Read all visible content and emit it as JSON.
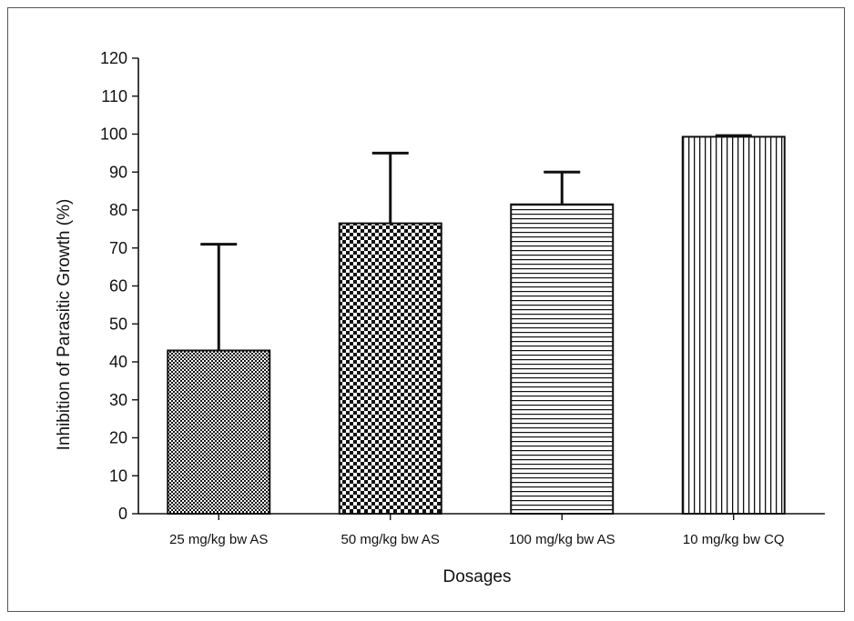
{
  "chart_data": {
    "type": "bar",
    "title": "",
    "xlabel": "Dosages",
    "ylabel": "Inhibition of Parasitic Growth (%)",
    "ylim": [
      0,
      120
    ],
    "yticks": [
      0,
      10,
      20,
      30,
      40,
      50,
      60,
      70,
      80,
      90,
      100,
      110,
      120
    ],
    "grid": false,
    "legend": "none",
    "categories": [
      "25 mg/kg bw AS",
      "50 mg/kg bw AS",
      "100 mg/kg bw AS",
      "10 mg/kg bw CQ"
    ],
    "values": [
      43,
      76.5,
      81.5,
      99.3
    ],
    "error_upper": [
      71,
      95,
      90,
      99.6
    ],
    "patterns": [
      "fine-checker",
      "coarse-checker",
      "horizontal-lines",
      "vertical-lines"
    ]
  },
  "colors": {
    "ink": "#111111",
    "frame": "#555555",
    "background": "#ffffff"
  }
}
